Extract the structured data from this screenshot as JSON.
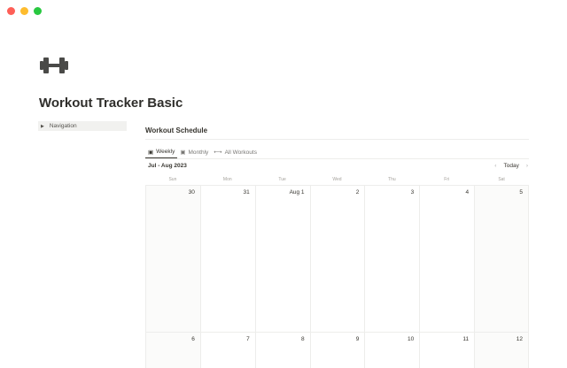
{
  "window": {
    "controls": [
      "close",
      "minimize",
      "maximize"
    ],
    "colors": [
      "#fe5f57",
      "#febc2e",
      "#28c840"
    ]
  },
  "page": {
    "icon": "dumbbell-icon",
    "title": "Workout Tracker Basic"
  },
  "navigation": {
    "label": "Navigation"
  },
  "schedule": {
    "title": "Workout Schedule",
    "tabs": [
      {
        "label": "Weekly",
        "icon": "calendar-icon",
        "active": true
      },
      {
        "label": "Monthly",
        "icon": "calendar-icon",
        "active": false
      },
      {
        "label": "All Workouts",
        "icon": "dumbbell-icon",
        "active": false
      }
    ],
    "range": "Jul - Aug 2023",
    "today": "Today",
    "weekdays": [
      "Sun",
      "Mon",
      "Tue",
      "Wed",
      "Thu",
      "Fri",
      "Sat"
    ],
    "weeks": [
      [
        "30",
        "31",
        "Aug 1",
        "2",
        "3",
        "4",
        "5"
      ],
      [
        "6",
        "7",
        "8",
        "9",
        "10",
        "11",
        "12"
      ]
    ]
  }
}
